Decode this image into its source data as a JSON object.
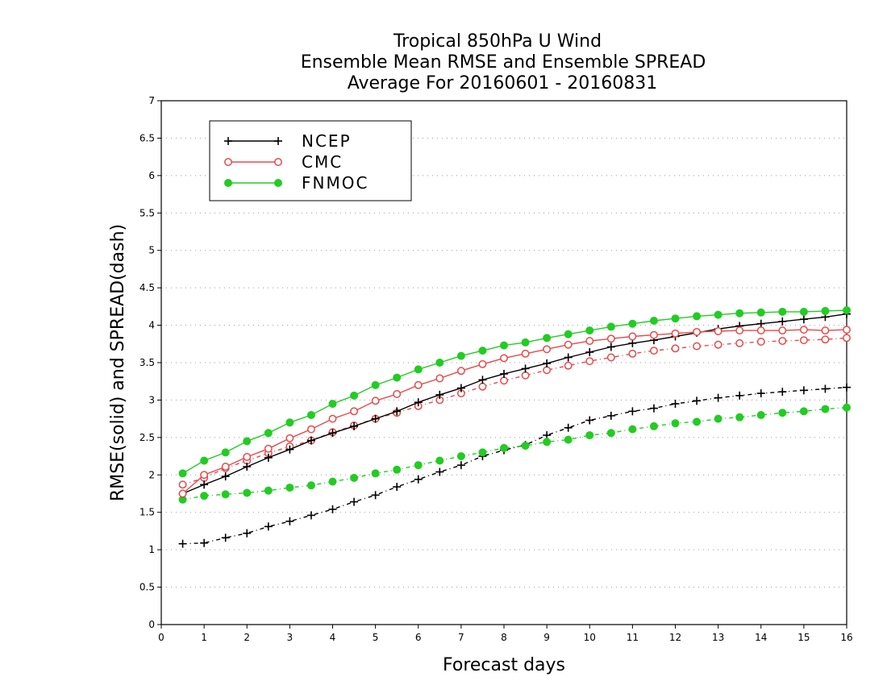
{
  "chart_data": {
    "type": "line",
    "title": [
      "Tropical 850hPa U Wind",
      "Ensemble Mean RMSE and Ensemble SPREAD",
      "Average For 20160601 - 20160831"
    ],
    "xlabel": "Forecast days",
    "ylabel": "RMSE(solid) and SPREAD(dash)",
    "xlim": [
      0,
      16
    ],
    "ylim": [
      0,
      7
    ],
    "x_ticks": [
      "0",
      "1",
      "2",
      "3",
      "4",
      "5",
      "6",
      "7",
      "8",
      "9",
      "10",
      "11",
      "12",
      "13",
      "14",
      "15",
      "16"
    ],
    "y_ticks": [
      "0",
      "0.5",
      "1",
      "1.5",
      "2",
      "2.5",
      "3",
      "3.5",
      "4",
      "4.5",
      "5",
      "5.5",
      "6",
      "6.5",
      "7"
    ],
    "grid": true,
    "legend_position": "top-left",
    "x": [
      0.5,
      1,
      1.5,
      2,
      2.5,
      3,
      3.5,
      4,
      4.5,
      5,
      5.5,
      6,
      6.5,
      7,
      7.5,
      8,
      8.5,
      9,
      9.5,
      10,
      10.5,
      11,
      11.5,
      12,
      12.5,
      13,
      13.5,
      14,
      14.5,
      15,
      15.5,
      16
    ],
    "series": [
      {
        "name": "NCEP",
        "color": "#000000",
        "marker": "plus",
        "rmse": [
          1.75,
          1.87,
          1.98,
          2.11,
          2.23,
          2.34,
          2.46,
          2.56,
          2.65,
          2.75,
          2.85,
          2.97,
          3.07,
          3.16,
          3.27,
          3.35,
          3.42,
          3.49,
          3.57,
          3.64,
          3.71,
          3.76,
          3.8,
          3.85,
          3.9,
          3.95,
          3.99,
          4.02,
          4.05,
          4.08,
          4.11,
          4.15
        ],
        "spread": [
          1.08,
          1.09,
          1.16,
          1.22,
          1.31,
          1.38,
          1.46,
          1.54,
          1.64,
          1.73,
          1.84,
          1.94,
          2.04,
          2.13,
          2.25,
          2.33,
          2.4,
          2.53,
          2.63,
          2.73,
          2.79,
          2.85,
          2.89,
          2.95,
          2.99,
          3.03,
          3.06,
          3.09,
          3.11,
          3.13,
          3.15,
          3.17
        ]
      },
      {
        "name": "CMC",
        "color": "#e8484a",
        "marker": "open-circle",
        "rmse": [
          1.75,
          2.0,
          2.11,
          2.24,
          2.35,
          2.49,
          2.61,
          2.75,
          2.85,
          2.99,
          3.08,
          3.2,
          3.29,
          3.39,
          3.48,
          3.56,
          3.62,
          3.68,
          3.74,
          3.79,
          3.82,
          3.85,
          3.87,
          3.89,
          3.91,
          3.92,
          3.93,
          3.93,
          3.93,
          3.94,
          3.93,
          3.94
        ],
        "spread": [
          1.87,
          1.96,
          2.09,
          2.19,
          2.29,
          2.38,
          2.46,
          2.57,
          2.66,
          2.75,
          2.83,
          2.92,
          3.0,
          3.09,
          3.18,
          3.26,
          3.33,
          3.4,
          3.46,
          3.52,
          3.57,
          3.62,
          3.66,
          3.69,
          3.72,
          3.74,
          3.76,
          3.78,
          3.79,
          3.8,
          3.81,
          3.83
        ]
      },
      {
        "name": "FNMOC",
        "color": "#22cc22",
        "marker": "filled-circle",
        "rmse": [
          2.02,
          2.19,
          2.3,
          2.45,
          2.56,
          2.7,
          2.8,
          2.95,
          3.06,
          3.2,
          3.3,
          3.41,
          3.5,
          3.59,
          3.66,
          3.73,
          3.77,
          3.83,
          3.88,
          3.93,
          3.98,
          4.02,
          4.06,
          4.09,
          4.12,
          4.14,
          4.16,
          4.17,
          4.18,
          4.18,
          4.19,
          4.2
        ],
        "spread": [
          1.67,
          1.72,
          1.74,
          1.76,
          1.79,
          1.83,
          1.86,
          1.91,
          1.96,
          2.02,
          2.07,
          2.13,
          2.19,
          2.25,
          2.3,
          2.36,
          2.39,
          2.44,
          2.47,
          2.53,
          2.56,
          2.61,
          2.65,
          2.69,
          2.71,
          2.75,
          2.77,
          2.8,
          2.83,
          2.85,
          2.88,
          2.9
        ]
      }
    ]
  }
}
